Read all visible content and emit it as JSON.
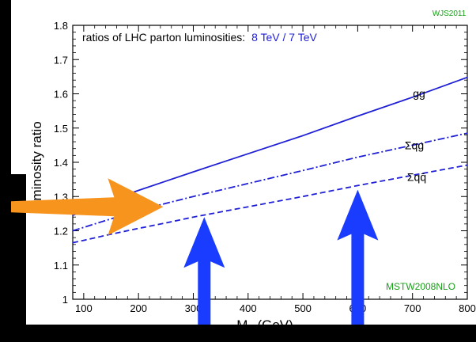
{
  "chart_data": {
    "type": "line",
    "title": "ratios of LHC parton luminosities:",
    "title_highlight": "8 TeV / 7 TeV",
    "xlabel": "M",
    "xlabel_sub": "X",
    "xlabel_unit": " (GeV)",
    "ylabel": "luminosity ratio",
    "xlim": [
      80,
      800
    ],
    "ylim": [
      1.0,
      1.8
    ],
    "xticks": [
      100,
      200,
      300,
      400,
      500,
      600,
      700,
      800
    ],
    "yticks": [
      1,
      1.1,
      1.2,
      1.3,
      1.4,
      1.5,
      1.6,
      1.7,
      1.8
    ],
    "series": [
      {
        "name": "gg",
        "style": "solid",
        "color": "#1f1fd6",
        "x": [
          80,
          100,
          150,
          200,
          250,
          300,
          400,
          500,
          600,
          700,
          800
        ],
        "y": [
          1.245,
          1.258,
          1.29,
          1.318,
          1.345,
          1.372,
          1.425,
          1.478,
          1.535,
          1.59,
          1.648
        ]
      },
      {
        "name": "Σqg",
        "style": "dashdot",
        "color": "#1f1fd6",
        "x": [
          80,
          100,
          150,
          200,
          250,
          300,
          400,
          500,
          600,
          700,
          800
        ],
        "y": [
          1.2,
          1.21,
          1.235,
          1.26,
          1.28,
          1.3,
          1.338,
          1.376,
          1.415,
          1.45,
          1.485
        ]
      },
      {
        "name": "Σqq̄",
        "style": "dashed",
        "color": "#1f1fd6",
        "x": [
          80,
          100,
          150,
          200,
          250,
          300,
          400,
          500,
          600,
          700,
          800
        ],
        "y": [
          1.165,
          1.172,
          1.19,
          1.207,
          1.223,
          1.24,
          1.27,
          1.3,
          1.332,
          1.362,
          1.392
        ]
      }
    ],
    "annotations": {
      "top_right": "WJS2011",
      "bottom_right": "MSTW2008NLO"
    },
    "overlay_arrows": [
      {
        "name": "orange-arrow",
        "color": "#f7941d",
        "direction": "right",
        "x": 245,
        "y": 1.27
      },
      {
        "name": "blue-arrow-1",
        "color": "#1a3cff",
        "direction": "up",
        "x": 320,
        "y": 1.24
      },
      {
        "name": "blue-arrow-2",
        "color": "#1a3cff",
        "direction": "up",
        "x": 600,
        "y": 1.32
      }
    ],
    "colors": {
      "curve": "#1f1fd6",
      "green_text": "#1a9e1a",
      "frame": "#000000"
    }
  }
}
